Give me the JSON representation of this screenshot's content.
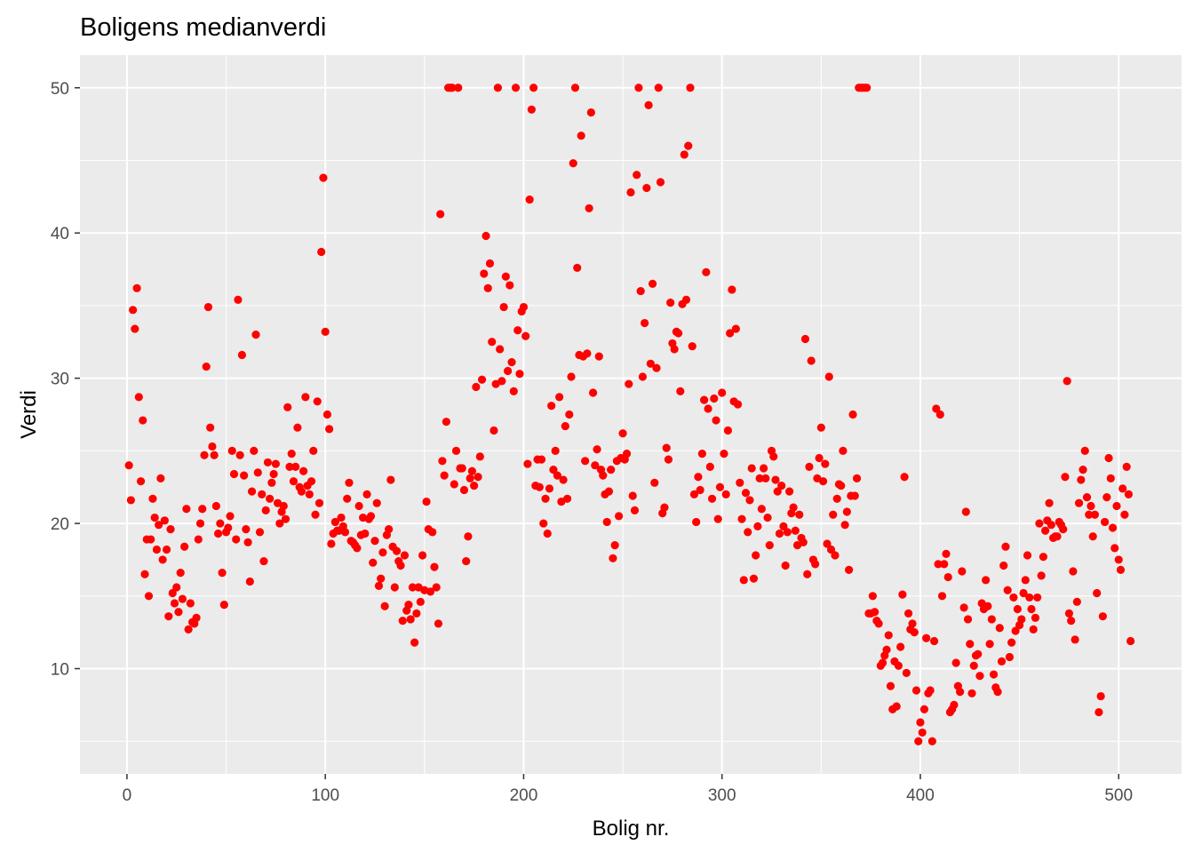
{
  "chart_data": {
    "type": "scatter",
    "title": "Boligens medianverdi",
    "xlabel": "Bolig nr.",
    "ylabel": "Verdi",
    "xlim": [
      -23.7,
      531.7
    ],
    "ylim": [
      2.75,
      52.25
    ],
    "x_ticks": [
      0,
      100,
      200,
      300,
      400,
      500
    ],
    "y_ticks": [
      10,
      20,
      30,
      40,
      50
    ],
    "x_tick_labels": [
      "0",
      "100",
      "200",
      "300",
      "400",
      "500"
    ],
    "y_tick_labels": [
      "10",
      "20",
      "30",
      "40",
      "50"
    ],
    "grid": true,
    "point_color": "#ff0000",
    "panel_color": "#ebebeb",
    "grid_color": "#ffffff",
    "series": [
      {
        "name": "medv",
        "x": [
          1,
          2,
          3,
          4,
          5,
          6,
          7,
          8,
          9,
          10,
          11,
          12,
          13,
          14,
          15,
          16,
          17,
          18,
          19,
          20,
          21,
          22,
          23,
          24,
          25,
          26,
          27,
          28,
          29,
          30,
          31,
          32,
          33,
          34,
          35,
          36,
          37,
          38,
          39,
          40,
          41,
          42,
          43,
          44,
          45,
          46,
          47,
          48,
          49,
          50,
          51,
          52,
          53,
          54,
          55,
          56,
          57,
          58,
          59,
          60,
          61,
          62,
          63,
          64,
          65,
          66,
          67,
          68,
          69,
          70,
          71,
          72,
          73,
          74,
          75,
          76,
          77,
          78,
          79,
          80,
          81,
          82,
          83,
          84,
          85,
          86,
          87,
          88,
          89,
          90,
          91,
          92,
          93,
          94,
          95,
          96,
          97,
          98,
          99,
          100,
          101,
          102,
          103,
          104,
          105,
          106,
          107,
          108,
          109,
          110,
          111,
          112,
          113,
          114,
          115,
          116,
          117,
          118,
          119,
          120,
          121,
          122,
          123,
          124,
          125,
          126,
          127,
          128,
          129,
          130,
          131,
          132,
          133,
          134,
          135,
          136,
          137,
          138,
          139,
          140,
          141,
          142,
          143,
          144,
          145,
          146,
          147,
          148,
          149,
          150,
          151,
          152,
          153,
          154,
          155,
          156,
          157,
          158,
          159,
          160,
          161,
          162,
          163,
          164,
          165,
          166,
          167,
          168,
          169,
          170,
          171,
          172,
          173,
          174,
          175,
          176,
          177,
          178,
          179,
          180,
          181,
          182,
          183,
          184,
          185,
          186,
          187,
          188,
          189,
          190,
          191,
          192,
          193,
          194,
          195,
          196,
          197,
          198,
          199,
          200,
          201,
          202,
          203,
          204,
          205,
          206,
          207,
          208,
          209,
          210,
          211,
          212,
          213,
          214,
          215,
          216,
          217,
          218,
          219,
          220,
          221,
          222,
          223,
          224,
          225,
          226,
          227,
          228,
          229,
          230,
          231,
          232,
          233,
          234,
          235,
          236,
          237,
          238,
          239,
          240,
          241,
          242,
          243,
          244,
          245,
          246,
          247,
          248,
          249,
          250,
          251,
          252,
          253,
          254,
          255,
          256,
          257,
          258,
          259,
          260,
          261,
          262,
          263,
          264,
          265,
          266,
          267,
          268,
          269,
          270,
          271,
          272,
          273,
          274,
          275,
          276,
          277,
          278,
          279,
          280,
          281,
          282,
          283,
          284,
          285,
          286,
          287,
          288,
          289,
          290,
          291,
          292,
          293,
          294,
          295,
          296,
          297,
          298,
          299,
          300,
          301,
          302,
          303,
          304,
          305,
          306,
          307,
          308,
          309,
          310,
          311,
          312,
          313,
          314,
          315,
          316,
          317,
          318,
          319,
          320,
          321,
          322,
          323,
          324,
          325,
          326,
          327,
          328,
          329,
          330,
          331,
          332,
          333,
          334,
          335,
          336,
          337,
          338,
          339,
          340,
          341,
          342,
          343,
          344,
          345,
          346,
          347,
          348,
          349,
          350,
          351,
          352,
          353,
          354,
          355,
          356,
          357,
          358,
          359,
          360,
          361,
          362,
          363,
          364,
          365,
          366,
          367,
          368,
          369,
          370,
          371,
          372,
          373,
          374,
          375,
          376,
          377,
          378,
          379,
          380,
          381,
          382,
          383,
          384,
          385,
          386,
          387,
          388,
          389,
          390,
          391,
          392,
          393,
          394,
          395,
          396,
          397,
          398,
          399,
          400,
          401,
          402,
          403,
          404,
          405,
          406,
          407,
          408,
          409,
          410,
          411,
          412,
          413,
          414,
          415,
          416,
          417,
          418,
          419,
          420,
          421,
          422,
          423,
          424,
          425,
          426,
          427,
          428,
          429,
          430,
          431,
          432,
          433,
          434,
          435,
          436,
          437,
          438,
          439,
          440,
          441,
          442,
          443,
          444,
          445,
          446,
          447,
          448,
          449,
          450,
          451,
          452,
          453,
          454,
          455,
          456,
          457,
          458,
          459,
          460,
          461,
          462,
          463,
          464,
          465,
          466,
          467,
          468,
          469,
          470,
          471,
          472,
          473,
          474,
          475,
          476,
          477,
          478,
          479,
          480,
          481,
          482,
          483,
          484,
          485,
          486,
          487,
          488,
          489,
          490,
          491,
          492,
          493,
          494,
          495,
          496,
          497,
          498,
          499,
          500,
          501,
          502,
          503,
          504,
          505,
          506
        ],
        "y": [
          24.0,
          21.6,
          34.7,
          33.4,
          36.2,
          28.7,
          22.9,
          27.1,
          16.5,
          18.9,
          15.0,
          18.9,
          21.7,
          20.4,
          18.2,
          19.9,
          23.1,
          17.5,
          20.2,
          18.2,
          13.6,
          19.6,
          15.2,
          14.5,
          15.6,
          13.9,
          16.6,
          14.8,
          18.4,
          21.0,
          12.7,
          14.5,
          13.2,
          13.1,
          13.5,
          18.9,
          20.0,
          21.0,
          24.7,
          30.8,
          34.9,
          26.6,
          25.3,
          24.7,
          21.2,
          19.3,
          20.0,
          16.6,
          14.4,
          19.4,
          19.7,
          20.5,
          25.0,
          23.4,
          18.9,
          35.4,
          24.7,
          31.6,
          23.3,
          19.6,
          18.7,
          16.0,
          22.2,
          25.0,
          33.0,
          23.5,
          19.4,
          22.0,
          17.4,
          20.9,
          24.2,
          21.7,
          22.8,
          23.4,
          24.1,
          21.4,
          20.0,
          20.8,
          21.2,
          20.3,
          28.0,
          23.9,
          24.8,
          22.9,
          23.9,
          26.6,
          22.5,
          22.2,
          23.6,
          28.7,
          22.6,
          22.0,
          22.9,
          25.0,
          20.6,
          28.4,
          21.4,
          38.7,
          43.8,
          33.2,
          27.5,
          26.5,
          18.6,
          19.3,
          20.1,
          19.5,
          19.5,
          20.4,
          19.8,
          19.4,
          21.7,
          22.8,
          18.8,
          18.7,
          18.5,
          18.3,
          21.2,
          19.2,
          20.4,
          19.3,
          22.0,
          20.3,
          20.5,
          17.3,
          18.8,
          21.4,
          15.7,
          16.2,
          18.0,
          14.3,
          19.2,
          19.6,
          23.0,
          18.4,
          15.6,
          18.1,
          17.4,
          17.1,
          13.3,
          17.8,
          14.0,
          14.4,
          13.4,
          15.6,
          11.8,
          13.8,
          15.6,
          14.6,
          17.8,
          15.4,
          21.5,
          19.6,
          15.3,
          19.4,
          17.0,
          15.6,
          13.1,
          41.3,
          24.3,
          23.3,
          27.0,
          50.0,
          50.0,
          50.0,
          22.7,
          25.0,
          50.0,
          23.8,
          23.8,
          22.3,
          17.4,
          19.1,
          23.1,
          23.6,
          22.6,
          29.4,
          23.2,
          24.6,
          29.9,
          37.2,
          39.8,
          36.2,
          37.9,
          32.5,
          26.4,
          29.6,
          50.0,
          32.0,
          29.8,
          34.9,
          37.0,
          30.5,
          36.4,
          31.1,
          29.1,
          50.0,
          33.3,
          30.3,
          34.6,
          34.9,
          32.9,
          24.1,
          42.3,
          48.5,
          50.0,
          22.6,
          24.4,
          22.5,
          24.4,
          20.0,
          21.7,
          19.3,
          22.4,
          28.1,
          23.7,
          25.0,
          23.3,
          28.7,
          21.5,
          23.0,
          26.7,
          21.7,
          27.5,
          30.1,
          44.8,
          50.0,
          37.6,
          31.6,
          46.7,
          31.5,
          24.3,
          31.7,
          41.7,
          48.3,
          29.0,
          24.0,
          25.1,
          31.5,
          23.7,
          23.3,
          22.0,
          20.1,
          22.2,
          23.7,
          17.6,
          18.5,
          24.3,
          20.5,
          24.5,
          26.2,
          24.4,
          24.8,
          29.6,
          42.8,
          21.9,
          20.9,
          44.0,
          50.0,
          36.0,
          30.1,
          33.8,
          43.1,
          48.8,
          31.0,
          36.5,
          22.8,
          30.7,
          50.0,
          43.5,
          20.7,
          21.1,
          25.2,
          24.4,
          35.2,
          32.4,
          32.0,
          33.2,
          33.1,
          29.1,
          35.1,
          45.4,
          35.4,
          46.0,
          50.0,
          32.2,
          22.0,
          20.1,
          23.2,
          22.3,
          24.8,
          28.5,
          37.3,
          27.9,
          23.9,
          21.7,
          28.6,
          27.1,
          20.3,
          22.5,
          29.0,
          24.8,
          22.0,
          26.4,
          33.1,
          36.1,
          28.4,
          33.4,
          28.2,
          22.8,
          20.3,
          16.1,
          22.1,
          19.4,
          21.6,
          23.8,
          16.2,
          17.8,
          19.8,
          23.1,
          21.0,
          23.8,
          23.1,
          20.4,
          18.5,
          25.0,
          24.6,
          23.0,
          22.2,
          19.3,
          22.6,
          19.8,
          17.1,
          19.4,
          22.2,
          20.7,
          21.1,
          19.5,
          18.5,
          20.6,
          19.0,
          18.7,
          32.7,
          16.5,
          23.9,
          31.2,
          17.5,
          17.2,
          23.1,
          24.5,
          26.6,
          22.9,
          24.1,
          18.6,
          30.1,
          18.2,
          20.6,
          17.8,
          21.7,
          22.7,
          22.6,
          25.0,
          19.9,
          20.8,
          16.8,
          21.9,
          27.5,
          21.9,
          23.1,
          50.0,
          50.0,
          50.0,
          50.0,
          50.0,
          13.8,
          13.8,
          15.0,
          13.9,
          13.3,
          13.1,
          10.2,
          10.4,
          10.9,
          11.3,
          12.3,
          8.8,
          7.2,
          10.5,
          7.4,
          10.2,
          11.5,
          15.1,
          23.2,
          9.7,
          13.8,
          12.7,
          13.1,
          12.5,
          8.5,
          5.0,
          6.3,
          5.6,
          7.2,
          12.1,
          8.3,
          8.5,
          5.0,
          11.9,
          27.9,
          17.2,
          27.5,
          15.0,
          17.2,
          17.9,
          16.3,
          7.0,
          7.2,
          7.5,
          10.4,
          8.8,
          8.4,
          16.7,
          14.2,
          20.8,
          13.4,
          11.7,
          8.3,
          10.2,
          10.9,
          11.0,
          9.5,
          14.5,
          14.1,
          16.1,
          14.3,
          11.7,
          13.4,
          9.6,
          8.7,
          8.4,
          12.8,
          10.5,
          17.1,
          18.4,
          15.4,
          10.8,
          11.8,
          14.9,
          12.6,
          14.1,
          13.0,
          13.4,
          15.2,
          16.1,
          17.8,
          14.9,
          14.1,
          12.7,
          13.5,
          14.9,
          20.0,
          16.4,
          17.7,
          19.5,
          20.2,
          21.4,
          19.9,
          19.0,
          19.1,
          19.1,
          20.1,
          19.9,
          19.6,
          23.2,
          29.8,
          13.8,
          13.3,
          16.7,
          12.0,
          14.6,
          21.4,
          23.0,
          23.7,
          25.0,
          21.8,
          20.6,
          21.2,
          19.1,
          20.6,
          15.2,
          7.0,
          8.1,
          13.6,
          20.1,
          21.8,
          24.5,
          23.1,
          19.7,
          18.3,
          21.2,
          17.5,
          16.8,
          22.4,
          20.6,
          23.9,
          22.0,
          11.9
        ]
      }
    ]
  }
}
